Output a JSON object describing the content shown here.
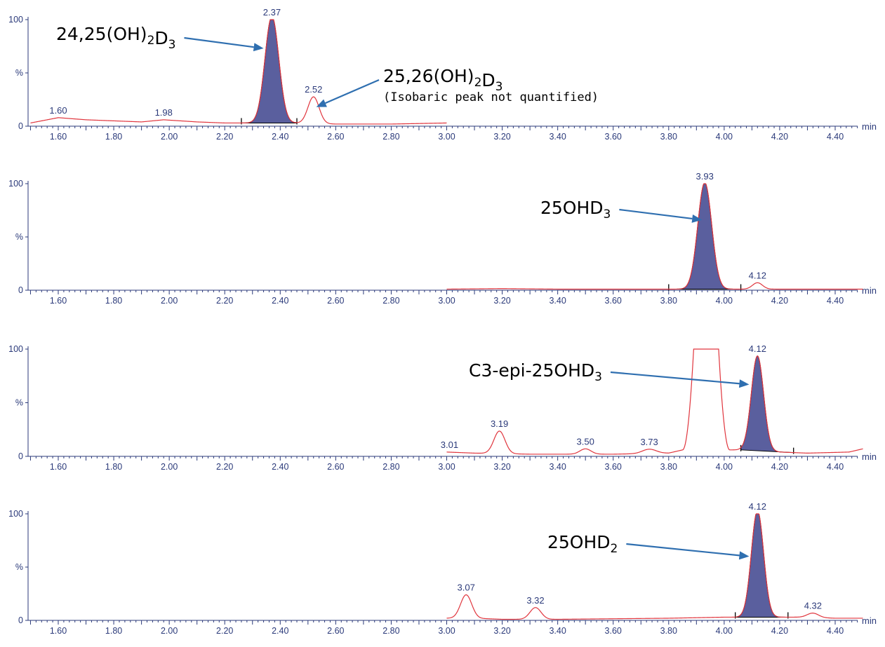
{
  "colors": {
    "trace": "#e0353d",
    "peak_fill": "#5a5f9e",
    "axis": "#2b3a7a",
    "arrow": "#2f6fb0",
    "text": "#000000"
  },
  "chart_data": [
    {
      "type": "line",
      "x_unit": "min",
      "xlim": [
        1.5,
        4.5
      ],
      "ylim": [
        0,
        100
      ],
      "x_ticks": [
        "1.60",
        "1.80",
        "2.00",
        "2.20",
        "2.40",
        "2.60",
        "2.80",
        "3.00",
        "3.20",
        "3.40",
        "3.60",
        "3.80",
        "4.00",
        "4.20",
        "4.40"
      ],
      "y_ticks": [
        "0",
        "%",
        "100"
      ],
      "trace_range": [
        1.5,
        3.0
      ],
      "baseline": [
        [
          1.5,
          3
        ],
        [
          1.6,
          8
        ],
        [
          1.7,
          6
        ],
        [
          1.8,
          5
        ],
        [
          1.9,
          4
        ],
        [
          1.98,
          6
        ],
        [
          2.1,
          4
        ],
        [
          2.2,
          3
        ],
        [
          2.3,
          3
        ],
        [
          2.45,
          3
        ],
        [
          2.6,
          2
        ],
        [
          2.8,
          2
        ],
        [
          3.0,
          3
        ]
      ],
      "peaks": [
        {
          "rt": 2.37,
          "label": "2.37",
          "height": 100,
          "width": 0.025,
          "filled": true,
          "integration": [
            2.26,
            2.46
          ]
        },
        {
          "rt": 2.52,
          "label": "2.52",
          "height": 25,
          "width": 0.02,
          "filled": false
        },
        {
          "rt": 1.6,
          "label": "1.60",
          "height": 0,
          "width": 0.03,
          "filled": false
        },
        {
          "rt": 1.98,
          "label": "1.98",
          "height": 0,
          "width": 0.03,
          "filled": false
        }
      ],
      "annotations": [
        {
          "parts": [
            [
              "24,25(OH)",
              "n"
            ],
            [
              "2",
              "sub"
            ],
            [
              "D",
              "n"
            ],
            [
              "3",
              "sub"
            ]
          ],
          "sub": "",
          "target": [
            2.34,
            73
          ]
        },
        {
          "parts": [
            [
              "25,26(OH)",
              "n"
            ],
            [
              "2",
              "sub"
            ],
            [
              "D",
              "n"
            ],
            [
              "3",
              "sub"
            ]
          ],
          "sub": "(Isobaric peak not quantified)",
          "target": [
            2.53,
            18
          ]
        }
      ]
    },
    {
      "type": "line",
      "x_unit": "min",
      "xlim": [
        1.5,
        4.5
      ],
      "ylim": [
        0,
        100
      ],
      "x_ticks": [
        "1.60",
        "1.80",
        "2.00",
        "2.20",
        "2.40",
        "2.60",
        "2.80",
        "3.00",
        "3.20",
        "3.40",
        "3.60",
        "3.80",
        "4.00",
        "4.20",
        "4.40"
      ],
      "y_ticks": [
        "0",
        "%",
        "100"
      ],
      "trace_range": [
        3.0,
        4.5
      ],
      "baseline": [
        [
          3.0,
          1
        ],
        [
          3.2,
          1.5
        ],
        [
          3.4,
          1
        ],
        [
          3.6,
          1
        ],
        [
          3.8,
          1
        ],
        [
          4.0,
          1
        ],
        [
          4.2,
          1
        ],
        [
          4.4,
          1
        ],
        [
          4.5,
          1
        ]
      ],
      "peaks": [
        {
          "rt": 3.93,
          "label": "3.93",
          "height": 100,
          "width": 0.025,
          "filled": true,
          "integration": [
            3.8,
            4.06
          ]
        },
        {
          "rt": 4.12,
          "label": "4.12",
          "height": 6,
          "width": 0.018,
          "filled": false
        }
      ],
      "annotations": [
        {
          "parts": [
            [
              "25OHD",
              "n"
            ],
            [
              "3",
              "sub"
            ]
          ],
          "sub": "",
          "target": [
            3.92,
            66
          ]
        }
      ]
    },
    {
      "type": "line",
      "x_unit": "min",
      "xlim": [
        1.5,
        4.5
      ],
      "ylim": [
        0,
        100
      ],
      "x_ticks": [
        "1.60",
        "1.80",
        "2.00",
        "2.20",
        "2.40",
        "2.60",
        "2.80",
        "3.00",
        "3.20",
        "3.40",
        "3.60",
        "3.80",
        "4.00",
        "4.20",
        "4.40"
      ],
      "y_ticks": [
        "0",
        "%",
        "100"
      ],
      "trace_range": [
        3.0,
        4.5
      ],
      "baseline": [
        [
          3.0,
          4
        ],
        [
          3.1,
          3
        ],
        [
          3.3,
          2
        ],
        [
          3.4,
          2
        ],
        [
          3.6,
          2
        ],
        [
          3.8,
          3
        ],
        [
          3.85,
          6
        ],
        [
          4.05,
          6
        ],
        [
          4.1,
          6
        ],
        [
          4.2,
          4
        ],
        [
          4.3,
          3
        ],
        [
          4.45,
          4
        ],
        [
          4.5,
          7
        ]
      ],
      "saturated": {
        "rise": [
          3.85,
          3.89
        ],
        "fall": [
          3.98,
          4.02
        ],
        "top": 100
      },
      "peaks": [
        {
          "rt": 4.12,
          "label": "4.12",
          "height": 88,
          "width": 0.022,
          "filled": true,
          "integration": [
            4.06,
            4.25
          ]
        },
        {
          "rt": 3.19,
          "label": "3.19",
          "height": 21,
          "width": 0.02,
          "filled": false
        },
        {
          "rt": 3.5,
          "label": "3.50",
          "height": 5,
          "width": 0.02,
          "filled": false
        },
        {
          "rt": 3.73,
          "label": "3.73",
          "height": 4,
          "width": 0.025,
          "filled": false
        },
        {
          "rt": 3.01,
          "label": "3.01",
          "height": 0,
          "width": 0.02,
          "filled": false
        }
      ],
      "annotations": [
        {
          "parts": [
            [
              "C3-epi-25OHD",
              "n"
            ],
            [
              "3",
              "sub"
            ]
          ],
          "sub": "",
          "target": [
            4.09,
            67
          ]
        }
      ]
    },
    {
      "type": "line",
      "x_unit": "min",
      "xlim": [
        1.5,
        4.5
      ],
      "ylim": [
        0,
        100
      ],
      "x_ticks": [
        "1.60",
        "1.80",
        "2.00",
        "2.20",
        "2.40",
        "2.60",
        "2.80",
        "3.00",
        "3.20",
        "3.40",
        "3.60",
        "3.80",
        "4.00",
        "4.20",
        "4.40"
      ],
      "y_ticks": [
        "0",
        "%",
        "100"
      ],
      "trace_range": [
        3.0,
        4.5
      ],
      "baseline": [
        [
          3.0,
          2
        ],
        [
          3.1,
          2
        ],
        [
          3.2,
          1
        ],
        [
          3.4,
          1
        ],
        [
          3.6,
          1.5
        ],
        [
          3.8,
          2
        ],
        [
          4.0,
          3
        ],
        [
          4.3,
          3
        ],
        [
          4.4,
          2
        ],
        [
          4.5,
          2
        ]
      ],
      "peaks": [
        {
          "rt": 4.12,
          "label": "4.12",
          "height": 100,
          "width": 0.022,
          "filled": true,
          "integration": [
            4.04,
            4.23
          ]
        },
        {
          "rt": 3.07,
          "label": "3.07",
          "height": 22,
          "width": 0.02,
          "filled": false
        },
        {
          "rt": 3.32,
          "label": "3.32",
          "height": 11,
          "width": 0.02,
          "filled": false
        },
        {
          "rt": 4.32,
          "label": "4.32",
          "height": 4,
          "width": 0.02,
          "filled": false
        }
      ],
      "annotations": [
        {
          "parts": [
            [
              "25OHD",
              "n"
            ],
            [
              "2",
              "sub"
            ]
          ],
          "sub": "",
          "target": [
            4.09,
            60
          ]
        }
      ]
    }
  ]
}
